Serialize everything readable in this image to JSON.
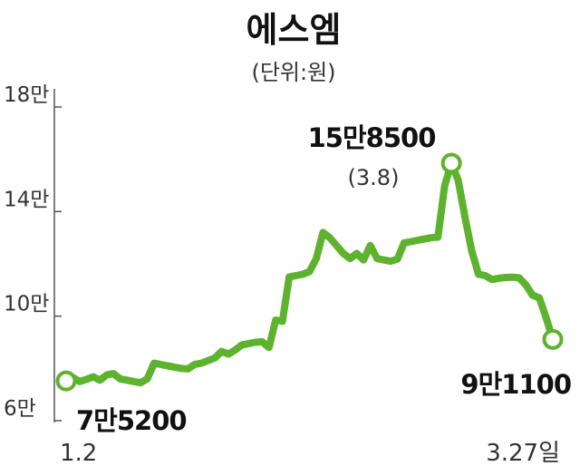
{
  "chart_data": {
    "type": "line",
    "title": "에스엠",
    "subtitle": "(단위:원)",
    "y_tick_labels": [
      "6만",
      "10만",
      "14만",
      "18만"
    ],
    "y_ticks": [
      60000,
      100000,
      140000,
      180000
    ],
    "ylim": [
      60000,
      180000
    ],
    "x_tick_labels": [
      "1.2",
      "3.27일"
    ],
    "grid": false,
    "series": [
      {
        "values": [
          75200,
          76500,
          75000,
          75800,
          76800,
          75500,
          77500,
          78000,
          76000,
          75500,
          75000,
          74500,
          76000,
          82000,
          81500,
          81000,
          80500,
          80000,
          79800,
          81500,
          82000,
          83000,
          84000,
          86500,
          85500,
          87000,
          89000,
          89500,
          90000,
          90200,
          88000,
          98500,
          98000,
          115000,
          115500,
          116000,
          117000,
          122000,
          132000,
          130000,
          127000,
          124000,
          122000,
          124000,
          121500,
          127000,
          122000,
          121500,
          121000,
          121800,
          128000,
          128500,
          129000,
          129500,
          130000,
          130200,
          150000,
          158500,
          152000,
          138000,
          125000,
          116000,
          115500,
          114000,
          114500,
          114800,
          114900,
          114700,
          112000,
          108000,
          107000,
          99500,
          91100
        ],
        "color": "#5db22e"
      }
    ],
    "annotations": [
      {
        "label": "7만5200",
        "point": "start"
      },
      {
        "label": "15만8500",
        "sublabel": "(3.8)",
        "point": "max"
      },
      {
        "label": "9만1100",
        "point": "end"
      }
    ]
  }
}
